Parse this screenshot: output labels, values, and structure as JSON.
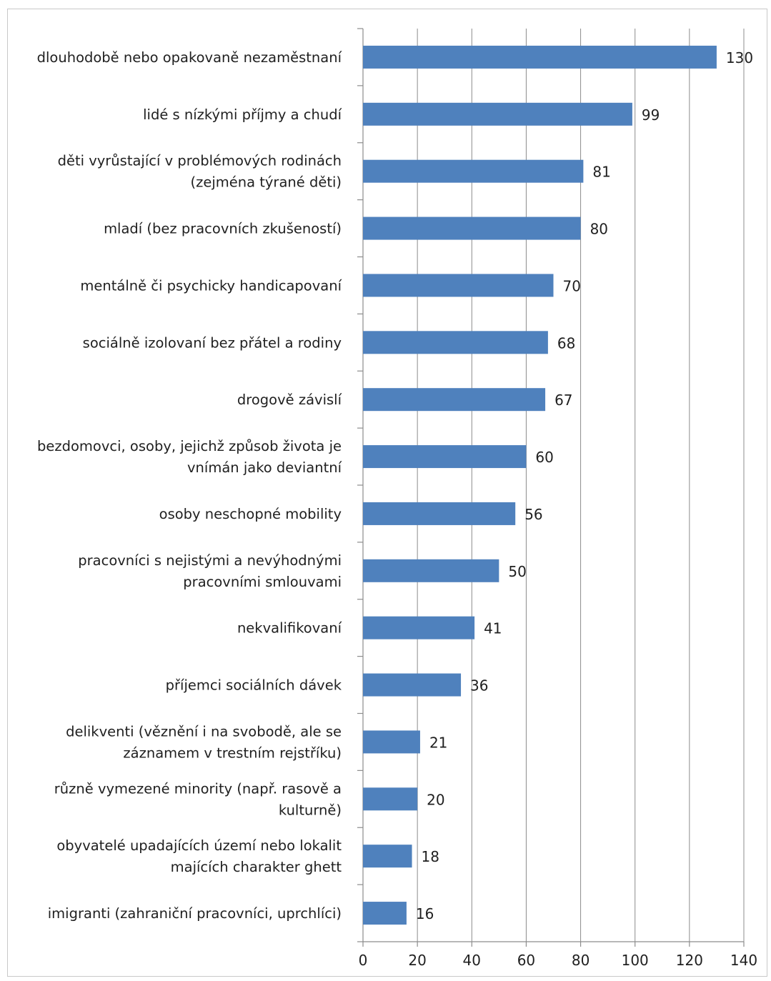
{
  "chart_data": {
    "type": "bar",
    "orientation": "horizontal",
    "title": "",
    "xlabel": "",
    "ylabel": "",
    "xlim": [
      0,
      140
    ],
    "x_ticks": [
      0,
      20,
      40,
      60,
      80,
      100,
      120,
      140
    ],
    "grid": "vertical major gridlines",
    "legend": "none",
    "bar_color": "#4f81bd",
    "categories": [
      [
        "dlouhodobě nebo opakovaně nezaměstnaní"
      ],
      [
        "lidé s nízkými příjmy a chudí"
      ],
      [
        "děti vyrůstající v problémových rodinách",
        "(zejména týrané děti)"
      ],
      [
        "mladí (bez pracovních zkušeností)"
      ],
      [
        "mentálně či psychicky handicapovaní"
      ],
      [
        "sociálně izolovaní bez přátel a rodiny"
      ],
      [
        "drogově závislí"
      ],
      [
        "bezdomovci, osoby, jejichž způsob života je",
        "vnímán jako deviantní"
      ],
      [
        "osoby neschopné mobility"
      ],
      [
        "pracovníci s nejistými a nevýhodnými",
        "pracovními smlouvami"
      ],
      [
        "nekvalifikovaní"
      ],
      [
        "příjemci sociálních dávek"
      ],
      [
        "delikventi (věznění i na svobodě, ale se",
        "záznamem v trestním rejstříku)"
      ],
      [
        "různě vymezené minority (např. rasově a",
        "kulturně)"
      ],
      [
        "obyvatelé upadajících území nebo lokalit",
        "majících charakter ghett"
      ],
      [
        "imigranti (zahraniční pracovníci, uprchlíci)"
      ]
    ],
    "values": [
      130,
      99,
      81,
      80,
      70,
      68,
      67,
      60,
      56,
      50,
      41,
      36,
      21,
      20,
      18,
      16
    ]
  }
}
